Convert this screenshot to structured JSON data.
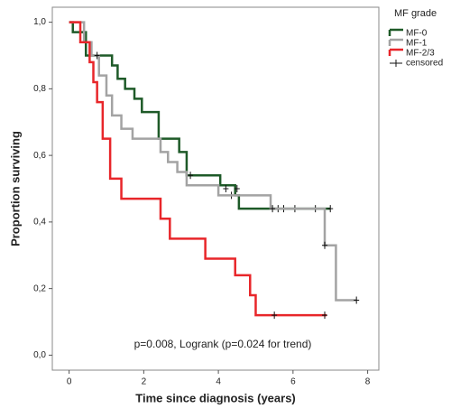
{
  "chart_data": {
    "type": "survival",
    "x_label": "Time since diagnosis (years)",
    "y_label": "Proportion surviving",
    "annotation": "p=0.008, Logrank (p=0.024 for trend)",
    "legend_title": "MF grade",
    "censored_label": "censored",
    "xlim": [
      -0.45,
      8.3
    ],
    "ylim": [
      -0.045,
      1.045
    ],
    "xticks": [
      0,
      2,
      4,
      6,
      8
    ],
    "yticks": [
      {
        "value": 0,
        "label": "0,0"
      },
      {
        "value": 0.2,
        "label": "0,2"
      },
      {
        "value": 0.4,
        "label": "0,4"
      },
      {
        "value": 0.6,
        "label": "0,6"
      },
      {
        "value": 0.8,
        "label": "0,8"
      },
      {
        "value": 1,
        "label": "1,0"
      }
    ],
    "series": [
      {
        "name": "MF-0",
        "color": "#1e5a28",
        "x": [
          0,
          0.1,
          0.45,
          1.15,
          1.3,
          1.5,
          1.75,
          1.95,
          2.4,
          2.95,
          3.15,
          4.05,
          4.45,
          4.55,
          7.0
        ],
        "values": [
          1,
          0.97,
          0.9,
          0.87,
          0.83,
          0.8,
          0.77,
          0.73,
          0.65,
          0.61,
          0.54,
          0.51,
          0.48,
          0.44,
          0.44
        ],
        "censored_x": [
          3.25,
          4.35,
          5.6,
          5.75,
          6.05,
          6.6,
          7.0
        ],
        "censored_values": [
          0.54,
          0.48,
          0.44,
          0.44,
          0.44,
          0.44,
          0.44
        ]
      },
      {
        "name": "MF-1",
        "color": "#a3a3a3",
        "x": [
          0,
          0.4,
          0.6,
          0.8,
          1.0,
          1.15,
          1.4,
          1.7,
          2.45,
          2.65,
          2.9,
          3.15,
          4.0,
          5.4,
          6.85,
          7.15,
          7.7
        ],
        "values": [
          1,
          0.94,
          0.9,
          0.84,
          0.78,
          0.72,
          0.68,
          0.65,
          0.61,
          0.58,
          0.55,
          0.51,
          0.48,
          0.44,
          0.33,
          0.165,
          0.165
        ],
        "censored_x": [
          0.75,
          4.2,
          4.5,
          5.45,
          6.85,
          7.7
        ],
        "censored_values": [
          0.9,
          0.5,
          0.5,
          0.44,
          0.33,
          0.165
        ]
      },
      {
        "name": "MF-2/3",
        "color": "#e8262a",
        "x": [
          0,
          0.3,
          0.55,
          0.65,
          0.75,
          0.9,
          1.1,
          1.4,
          2.45,
          2.7,
          3.65,
          4.45,
          4.85,
          5.0,
          6.9
        ],
        "values": [
          1,
          0.94,
          0.88,
          0.82,
          0.76,
          0.65,
          0.53,
          0.47,
          0.41,
          0.35,
          0.29,
          0.24,
          0.18,
          0.12,
          0.12
        ],
        "censored_x": [
          5.5,
          6.85
        ],
        "censored_values": [
          0.12,
          0.12
        ]
      }
    ]
  }
}
